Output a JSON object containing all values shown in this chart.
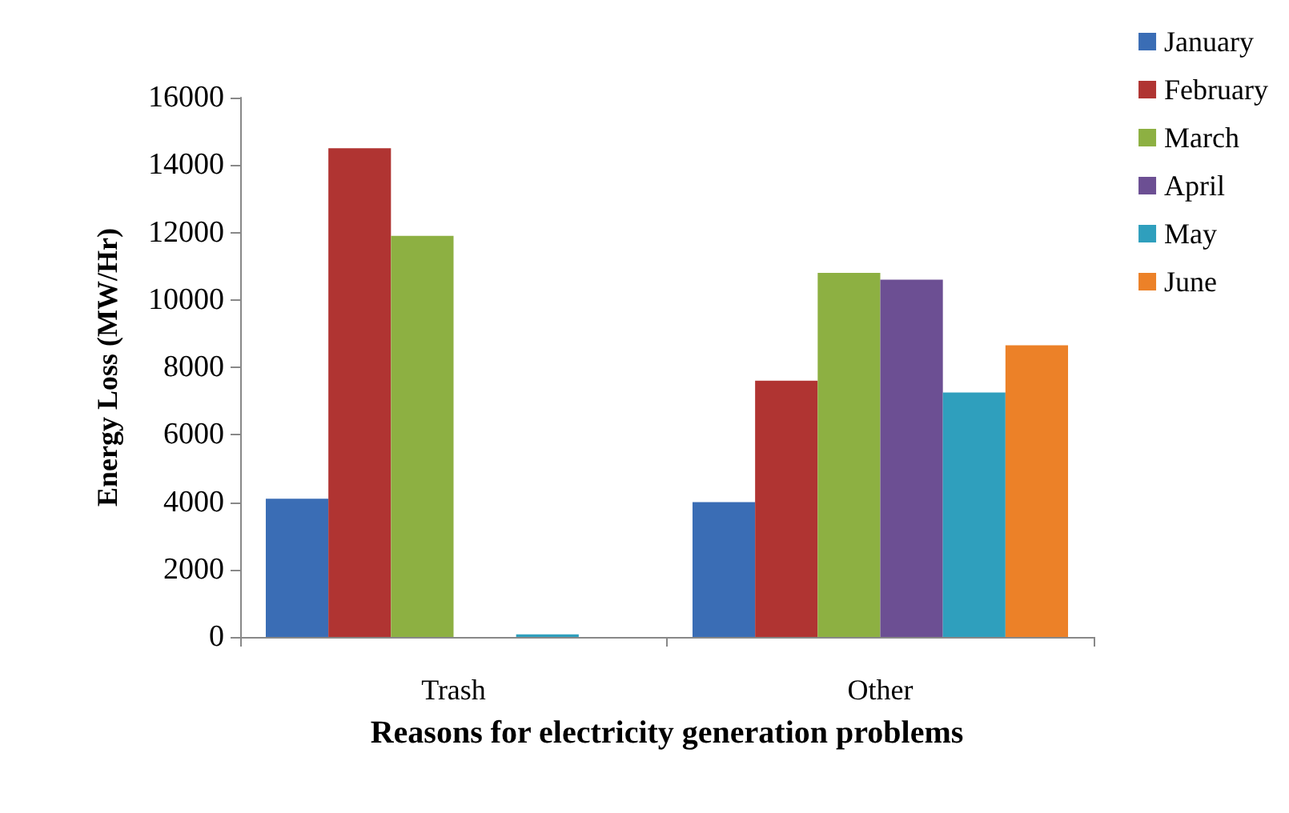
{
  "chart_data": {
    "type": "bar",
    "xlabel": "Reasons for electricity generation problems",
    "ylabel": "Energy Loss (MW/Hr)",
    "categories": [
      "Trash",
      "Other"
    ],
    "series": [
      {
        "name": "January",
        "color": "#3a6db5",
        "values": [
          4100,
          4000
        ]
      },
      {
        "name": "February",
        "color": "#b03432",
        "values": [
          14500,
          7600
        ]
      },
      {
        "name": "March",
        "color": "#8db042",
        "values": [
          11900,
          10800
        ]
      },
      {
        "name": "April",
        "color": "#6c4f93",
        "values": [
          0,
          10600
        ]
      },
      {
        "name": "May",
        "color": "#2f9fbd",
        "values": [
          80,
          7250
        ]
      },
      {
        "name": "June",
        "color": "#ec8128",
        "values": [
          0,
          8650
        ]
      }
    ],
    "ylim": [
      0,
      16000
    ],
    "yticks": [
      0,
      2000,
      4000,
      6000,
      8000,
      10000,
      12000,
      14000,
      16000
    ],
    "grid": false,
    "legend": "top right"
  }
}
